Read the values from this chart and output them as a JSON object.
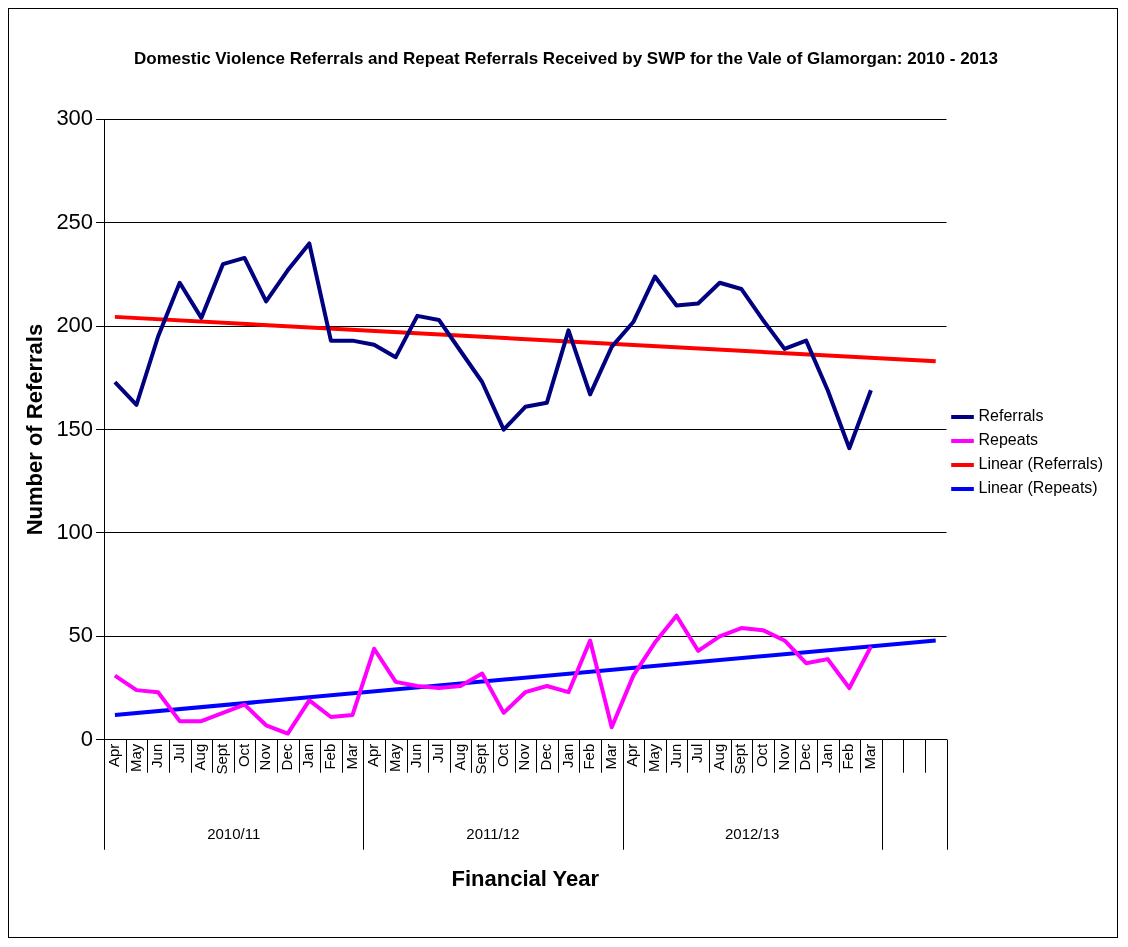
{
  "chart_data": {
    "type": "line",
    "title": "Domestic Violence Referrals and Repeat Referrals Received by SWP for the Vale of Glamorgan: 2010 - 2013",
    "xlabel": "Financial Year",
    "ylabel": "Number of Referrals",
    "categories": [
      "Apr",
      "May",
      "Jun",
      "Jul",
      "Aug",
      "Sept",
      "Oct",
      "Nov",
      "Dec",
      "Jan",
      "Feb",
      "Mar",
      "Apr",
      "May",
      "Jun",
      "Jul",
      "Aug",
      "Sept",
      "Oct",
      "Nov",
      "Dec",
      "Jan",
      "Feb",
      "Mar",
      "Apr",
      "May",
      "Jun",
      "Jul",
      "Aug",
      "Sept",
      "Oct",
      "Nov",
      "Dec",
      "Jan",
      "Feb",
      "Mar",
      null,
      null,
      null
    ],
    "annotations": [
      "2010/11",
      "2011/12",
      "2012/13"
    ],
    "series": [
      {
        "name": "Referrals",
        "color": "#000080",
        "values": [
          173,
          162,
          195,
          221,
          204,
          230,
          233,
          212,
          227,
          240,
          193,
          193,
          191,
          185,
          205,
          203,
          188,
          173,
          150,
          161,
          163,
          198,
          167,
          190,
          202,
          224,
          210,
          211,
          221,
          218,
          203,
          189,
          193,
          169,
          141,
          169,
          null,
          null,
          null
        ]
      },
      {
        "name": "Repeats",
        "color": "#ff00ff",
        "values": [
          31,
          24,
          23,
          9,
          9,
          13,
          17,
          7,
          3,
          19,
          11,
          12,
          44,
          28,
          26,
          25,
          26,
          32,
          13,
          23,
          26,
          23,
          48,
          6,
          31,
          47,
          60,
          43,
          50,
          54,
          53,
          48,
          37,
          39,
          25,
          45,
          null,
          null,
          null
        ]
      },
      {
        "name": "Linear (Referrals)",
        "color": "#ff0000",
        "values": [
          204.5,
          null,
          null,
          null,
          null,
          null,
          null,
          null,
          null,
          null,
          null,
          null,
          null,
          null,
          null,
          null,
          null,
          null,
          null,
          null,
          null,
          null,
          null,
          null,
          null,
          null,
          null,
          null,
          null,
          null,
          null,
          null,
          null,
          null,
          null,
          null,
          null,
          null,
          183
        ]
      },
      {
        "name": "Linear (Repeats)",
        "color": "#0000ff",
        "values": [
          12,
          null,
          null,
          null,
          null,
          null,
          null,
          null,
          null,
          null,
          null,
          null,
          null,
          null,
          null,
          null,
          null,
          null,
          null,
          null,
          null,
          null,
          null,
          null,
          null,
          null,
          null,
          null,
          null,
          null,
          null,
          null,
          null,
          null,
          null,
          null,
          null,
          null,
          48
        ]
      }
    ],
    "ylim": [
      0,
      300
    ],
    "yticks": [
      0,
      50,
      100,
      150,
      200,
      250,
      300
    ],
    "grid": "y",
    "legend": "right",
    "marker": "none",
    "line_style": "solid"
  }
}
